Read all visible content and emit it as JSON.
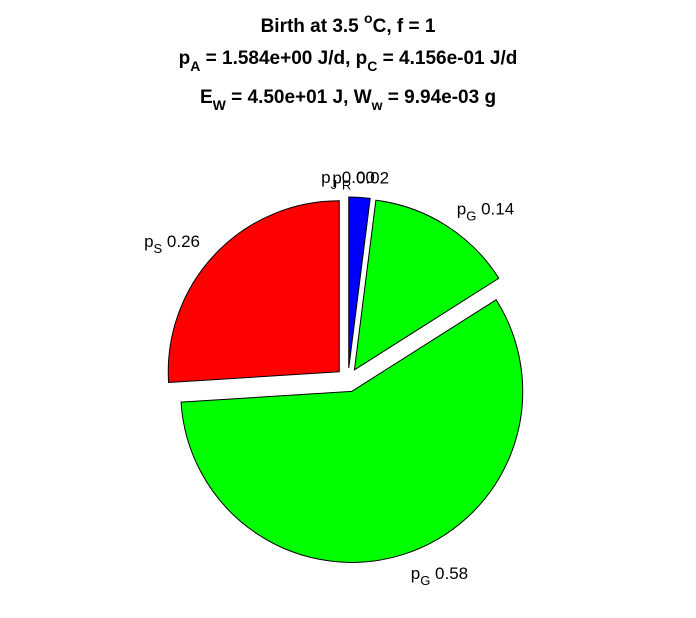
{
  "chart_data": {
    "type": "pie",
    "title": {
      "line1": {
        "prefix": "Birth at 3.5 ",
        "sup": "o",
        "suffix": "C, f = 1"
      },
      "line2": {
        "a_sym": "p",
        "a_sub": "A",
        "a_val": " = 1.584e+00 J/d, ",
        "c_sym": "p",
        "c_sub": "C",
        "c_val": " = 4.156e-01 J/d"
      },
      "line3": {
        "e_sym": "E",
        "e_sub": "W",
        "e_val": " = 4.50e+01 J, ",
        "w_sym": "W",
        "w_sub": "w",
        "w_val": " = 9.94e-03 g"
      }
    },
    "slices": [
      {
        "sym": "p",
        "sub": "J",
        "value_label": "0.00",
        "value": 0.0,
        "color": "#0000ff"
      },
      {
        "sym": "p",
        "sub": "R",
        "value_label": "0.02",
        "value": 0.02,
        "color": "#0000ff"
      },
      {
        "sym": "p",
        "sub": "G",
        "value_label": "0.14",
        "value": 0.14,
        "color": "#00ff00"
      },
      {
        "sym": "p",
        "sub": "G",
        "value_label": "0.58",
        "value": 0.58,
        "color": "#00ff00"
      },
      {
        "sym": "p",
        "sub": "S",
        "value_label": "0.26",
        "value": 0.26,
        "color": "#ff0000"
      }
    ]
  }
}
